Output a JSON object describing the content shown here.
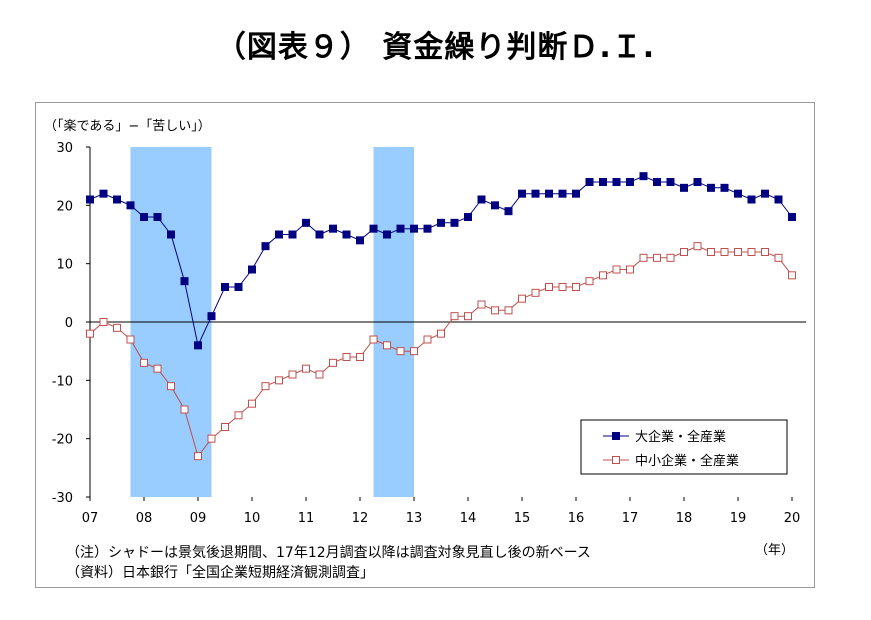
{
  "title": "（図表９） 資金繰り判断Ｄ.Ｉ.",
  "chart_data": {
    "type": "line",
    "ylabel": "（「楽である」−「苦しい」）",
    "xunit": "（年）",
    "ylim": [
      -30,
      30
    ],
    "yticks": [
      30,
      20,
      10,
      0,
      -10,
      -20,
      -30
    ],
    "xticks": [
      "07",
      "08",
      "09",
      "10",
      "11",
      "12",
      "13",
      "14",
      "15",
      "16",
      "17",
      "18",
      "19",
      "20"
    ],
    "shaded_periods": [
      {
        "start": 2007.75,
        "end": 2009.25
      },
      {
        "start": 2012.25,
        "end": 2013.0
      }
    ],
    "x": [
      2007.0,
      2007.25,
      2007.5,
      2007.75,
      2008.0,
      2008.25,
      2008.5,
      2008.75,
      2009.0,
      2009.25,
      2009.5,
      2009.75,
      2010.0,
      2010.25,
      2010.5,
      2010.75,
      2011.0,
      2011.25,
      2011.5,
      2011.75,
      2012.0,
      2012.25,
      2012.5,
      2012.75,
      2013.0,
      2013.25,
      2013.5,
      2013.75,
      2014.0,
      2014.25,
      2014.5,
      2014.75,
      2015.0,
      2015.25,
      2015.5,
      2015.75,
      2016.0,
      2016.25,
      2016.5,
      2016.75,
      2017.0,
      2017.25,
      2017.5,
      2017.75,
      2018.0,
      2018.25,
      2018.5,
      2018.75,
      2019.0,
      2019.25,
      2019.5,
      2019.75,
      2020.0
    ],
    "series": [
      {
        "name": "大企業・全産業",
        "color": "#000080",
        "marker": "filled-square",
        "values": [
          21,
          22,
          21,
          20,
          18,
          18,
          15,
          7,
          -4,
          1,
          6,
          6,
          9,
          13,
          15,
          15,
          17,
          15,
          16,
          15,
          14,
          16,
          15,
          16,
          16,
          16,
          17,
          17,
          18,
          21,
          20,
          19,
          22,
          22,
          22,
          22,
          22,
          24,
          24,
          24,
          24,
          25,
          24,
          24,
          23,
          24,
          23,
          23,
          22,
          21,
          22,
          21,
          18
        ]
      },
      {
        "name": "中小企業・全産業",
        "color": "#c0504d",
        "marker": "open-square",
        "values": [
          -2,
          0,
          -1,
          -3,
          -7,
          -8,
          -11,
          -15,
          -23,
          -20,
          -18,
          -16,
          -14,
          -11,
          -10,
          -9,
          -8,
          -9,
          -7,
          -6,
          -6,
          -3,
          -4,
          -5,
          -5,
          -3,
          -2,
          1,
          1,
          3,
          2,
          2,
          4,
          5,
          6,
          6,
          6,
          7,
          8,
          9,
          9,
          11,
          11,
          11,
          12,
          13,
          12,
          12,
          12,
          12,
          12,
          11,
          8
        ]
      }
    ],
    "legend_position": "bottom-right",
    "grid": false
  },
  "notes": {
    "note1": "（注）シャドーは景気後退期間、17年12月調査以降は調査対象見直し後の新ベース",
    "note2": "（資料）日本銀行「全国企業短期経済観測調査」"
  }
}
